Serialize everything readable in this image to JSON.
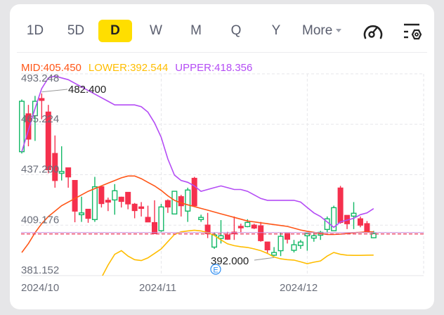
{
  "tabs": [
    {
      "label": "1D"
    },
    {
      "label": "5D"
    },
    {
      "label": "D",
      "selected": true
    },
    {
      "label": "W"
    },
    {
      "label": "M"
    },
    {
      "label": "Q"
    },
    {
      "label": "Y"
    }
  ],
  "more_label": "More",
  "icons": {
    "indicator": "speedometer-icon",
    "settings": "chart-settings-icon"
  },
  "legend": {
    "mid": "MID:405.450",
    "lower": "LOWER:392.544",
    "upper": "UPPER:418.356"
  },
  "colors": {
    "up": "#12b866",
    "down": "#f5304d",
    "mid": "#ff5516",
    "lower": "#ffbd00",
    "upper": "#b44cf5",
    "accent": "#ffde00",
    "marker": "#2b8cf2"
  },
  "chart_data": {
    "type": "candlestick",
    "indicator": "BOLL",
    "ylim": [
      381.152,
      493.248
    ],
    "y_ticks": [
      "493.248",
      "465.224",
      "437.200",
      "409.176",
      "381.152"
    ],
    "x_labels": [
      {
        "label": "2024/10",
        "index": 0
      },
      {
        "label": "2024/11",
        "index": 21
      },
      {
        "label": "2024/12",
        "index": 43
      }
    ],
    "grid": true,
    "high_annotation": {
      "label": "482.400",
      "index": 3,
      "value": 482.4
    },
    "low_annotation": {
      "label": "392.000",
      "index": 29,
      "value": 392.0
    },
    "earnings_marker": {
      "label": "E",
      "index": 29
    },
    "last_price": 404.5,
    "ohlc": [
      [
        450,
        479,
        449,
        478
      ],
      [
        471,
        476,
        453,
        457
      ],
      [
        470,
        481,
        456,
        478
      ],
      [
        479.5,
        482.4,
        468,
        478.5
      ],
      [
        472,
        476,
        438,
        440
      ],
      [
        449,
        459,
        430,
        434
      ],
      [
        438,
        453,
        434,
        439
      ],
      [
        441,
        441,
        430,
        436
      ],
      [
        434,
        434,
        410.8,
        417
      ],
      [
        415,
        425,
        411,
        416
      ],
      [
        418,
        418,
        410.5,
        413
      ],
      [
        412.3,
        436,
        411,
        430.5
      ],
      [
        430.5,
        430.5,
        419,
        421.2
      ],
      [
        423,
        424.5,
        417,
        422
      ],
      [
        423.2,
        432,
        415,
        428.3
      ],
      [
        424.7,
        425,
        419,
        422.4
      ],
      [
        427.4,
        427.4,
        418,
        421
      ],
      [
        420.8,
        421.5,
        413,
        417.3
      ],
      [
        419.3,
        422,
        414,
        418.5
      ],
      [
        413.5,
        420,
        411,
        411
      ],
      [
        410.6,
        423,
        404.5,
        404.5
      ],
      [
        406.1,
        421,
        405.5,
        419.3
      ],
      [
        422.8,
        423.5,
        416,
        419.3
      ],
      [
        415.4,
        428,
        415.4,
        428
      ],
      [
        425,
        426,
        414,
        420
      ],
      [
        417,
        430,
        411,
        428.7
      ],
      [
        435.2,
        436,
        420,
        420
      ],
      [
        412.3,
        415,
        411,
        413.5
      ],
      [
        409.2,
        416,
        402,
        404.5
      ],
      [
        397,
        405,
        396,
        403.7
      ],
      [
        401.8,
        412,
        399,
        403.3
      ],
      [
        403.7,
        405.5,
        401,
        401.4
      ],
      [
        405.3,
        414,
        401,
        404.5
      ],
      [
        408.5,
        410,
        405,
        408
      ],
      [
        408.4,
        412.5,
        408,
        410.7
      ],
      [
        409.2,
        410,
        407,
        407.6
      ],
      [
        408.8,
        411,
        400,
        400.6
      ],
      [
        399.8,
        399.8,
        393.6,
        395.5
      ],
      [
        392.5,
        397,
        392,
        394
      ],
      [
        395,
        405,
        392,
        403
      ],
      [
        404.5,
        404.5,
        399,
        401.4
      ],
      [
        395.2,
        401,
        394,
        398.3
      ],
      [
        397.9,
        401,
        396,
        399.8
      ],
      [
        403.3,
        404,
        395,
        404.5
      ],
      [
        402,
        405,
        400,
        403.3
      ],
      [
        403.6,
        406,
        401,
        405.2
      ],
      [
        406.8,
        414,
        405,
        412.7
      ],
      [
        406.1,
        420,
        406,
        418.9
      ],
      [
        429.8,
        431,
        410,
        410.7
      ],
      [
        414.6,
        414.6,
        407,
        410
      ],
      [
        414.2,
        422,
        407,
        415.8
      ],
      [
        412.7,
        414,
        408,
        409.2
      ],
      [
        410,
        411.5,
        405.3,
        405.3
      ],
      [
        402.2,
        406,
        402,
        404.5
      ]
    ],
    "series": [
      {
        "name": "MID",
        "values": [
          394,
          399,
          405,
          410,
          414,
          417,
          420,
          422,
          424,
          426,
          428,
          429.5,
          431,
          432.5,
          434,
          435.5,
          436.5,
          436.5,
          435,
          433,
          431,
          428.5,
          425.5,
          423,
          421.5,
          420.5,
          419.5,
          418.5,
          417.5,
          416.5,
          415.5,
          414.5,
          413.5,
          412.5,
          411.5,
          411,
          410.5,
          410,
          409.5,
          409,
          408.5,
          407.5,
          406.5,
          405.8,
          405.2,
          404.6,
          404,
          404,
          404.2,
          404.5,
          405,
          405.2,
          405.5,
          405.45
        ]
      },
      {
        "name": "UPPER",
        "values": [
          450,
          462,
          474,
          485,
          491,
          492,
          491,
          490,
          488,
          486,
          484,
          482,
          480,
          478,
          476,
          476,
          476,
          476,
          475,
          472,
          466,
          458,
          446,
          437,
          434,
          433,
          431,
          428,
          429,
          430,
          431,
          430,
          429,
          429,
          428,
          426,
          424,
          423,
          423,
          423,
          423,
          423,
          422,
          419,
          416,
          414,
          411,
          408,
          411,
          412,
          413,
          415,
          416,
          418.356
        ]
      },
      {
        "name": "LOWER",
        "values": [
          null,
          null,
          null,
          null,
          null,
          null,
          null,
          null,
          null,
          null,
          null,
          null,
          380,
          387,
          393,
          395,
          392,
          390,
          389.5,
          391,
          393.5,
          396,
          400,
          404,
          405.5,
          406,
          406.4,
          406,
          405,
          403.5,
          401,
          398.8,
          397.8,
          397.2,
          396.8,
          396,
          395,
          393.5,
          391.5,
          390.5,
          390,
          389.8,
          388.8,
          387.8,
          388.6,
          389.3,
          392,
          394,
          393,
          392.5,
          392.4,
          392.4,
          392.5,
          392.544
        ]
      }
    ]
  }
}
